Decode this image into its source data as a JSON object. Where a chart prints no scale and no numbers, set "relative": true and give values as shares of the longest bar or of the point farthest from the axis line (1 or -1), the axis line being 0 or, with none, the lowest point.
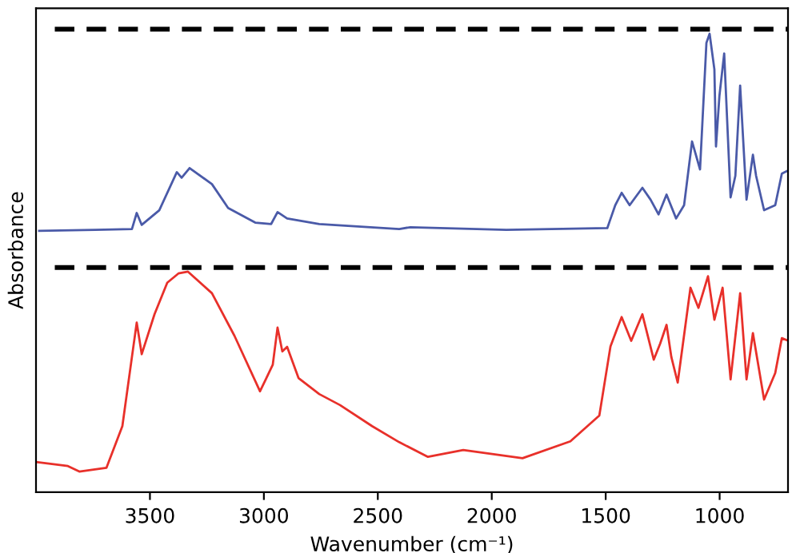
{
  "chart_data": {
    "type": "line",
    "relative": true,
    "xlabel": "Wavenumber (cm⁻¹)",
    "ylabel": "Absorbance",
    "xlim": [
      4000,
      700
    ],
    "xticks": [
      3500,
      3000,
      2500,
      2000,
      1500,
      1000
    ],
    "grid": false,
    "legend": false,
    "marker": "none",
    "line_style": "solid",
    "series": [
      {
        "color": "#4a5aa8",
        "x": [
          3986,
          3740,
          3579,
          3558,
          3536,
          3459,
          3382,
          3361,
          3326,
          3228,
          3157,
          3038,
          2968,
          2940,
          2898,
          2757,
          2406,
          2357,
          1936,
          1493,
          1458,
          1430,
          1395,
          1339,
          1303,
          1268,
          1233,
          1191,
          1156,
          1121,
          1086,
          1058,
          1044,
          1023,
          1016,
          1001,
          980,
          952,
          931,
          910,
          882,
          854,
          840,
          805,
          756,
          727,
          707
        ],
        "values": [
          0.57,
          0.572,
          0.574,
          0.609,
          0.583,
          0.615,
          0.698,
          0.686,
          0.707,
          0.672,
          0.62,
          0.588,
          0.585,
          0.611,
          0.597,
          0.585,
          0.574,
          0.578,
          0.572,
          0.576,
          0.626,
          0.653,
          0.626,
          0.664,
          0.638,
          0.606,
          0.649,
          0.597,
          0.626,
          0.765,
          0.704,
          0.98,
          1.0,
          0.922,
          0.754,
          0.864,
          0.957,
          0.643,
          0.69,
          0.887,
          0.638,
          0.736,
          0.69,
          0.615,
          0.626,
          0.695,
          0.7
        ]
      },
      {
        "color": "#e8302a",
        "x": [
          4000,
          3860,
          3810,
          3691,
          3621,
          3579,
          3558,
          3536,
          3480,
          3424,
          3375,
          3333,
          3228,
          3129,
          3017,
          2989,
          2961,
          2940,
          2919,
          2898,
          2848,
          2757,
          2666,
          2525,
          2406,
          2280,
          2125,
          1865,
          1655,
          1528,
          1479,
          1451,
          1430,
          1388,
          1339,
          1289,
          1261,
          1233,
          1212,
          1184,
          1128,
          1093,
          1051,
          1023,
          987,
          952,
          910,
          882,
          854,
          805,
          756,
          727,
          707
        ],
        "values": [
          0.066,
          0.057,
          0.045,
          0.053,
          0.144,
          0.295,
          0.37,
          0.301,
          0.388,
          0.457,
          0.477,
          0.481,
          0.434,
          0.341,
          0.22,
          0.249,
          0.278,
          0.359,
          0.307,
          0.317,
          0.249,
          0.214,
          0.19,
          0.144,
          0.109,
          0.077,
          0.092,
          0.074,
          0.111,
          0.167,
          0.318,
          0.355,
          0.382,
          0.33,
          0.388,
          0.289,
          0.324,
          0.365,
          0.295,
          0.239,
          0.446,
          0.402,
          0.471,
          0.376,
          0.446,
          0.246,
          0.434,
          0.246,
          0.347,
          0.202,
          0.26,
          0.336,
          0.332
        ]
      }
    ],
    "ref_lines": [
      {
        "axis": "y",
        "value": 1.01,
        "color": "#000000",
        "line_style": "dashed"
      },
      {
        "axis": "y",
        "value": 0.49,
        "color": "#000000",
        "line_style": "dashed"
      }
    ]
  }
}
